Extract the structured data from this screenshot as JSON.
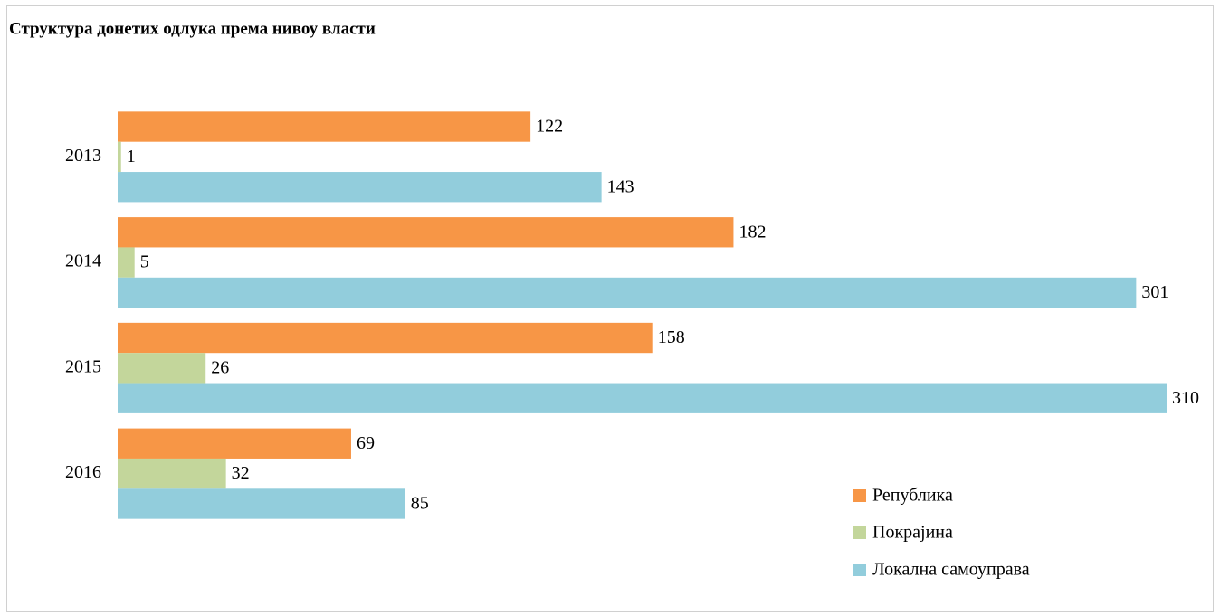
{
  "chart_data": {
    "type": "hbar",
    "title": "Структура донетих одлука према нивоу власти",
    "categories": [
      "2013",
      "2014",
      "2015",
      "2016"
    ],
    "series": [
      {
        "name": "Република",
        "color": "#f79646",
        "values": [
          122,
          182,
          158,
          69
        ]
      },
      {
        "name": "Покрајина",
        "color": "#c3d69b",
        "values": [
          1,
          5,
          26,
          32
        ]
      },
      {
        "name": "Локална самоуправа",
        "color": "#92cddc",
        "values": [
          143,
          301,
          310,
          85
        ]
      }
    ],
    "xlim": [
      0,
      310
    ],
    "legend": "lower right"
  }
}
